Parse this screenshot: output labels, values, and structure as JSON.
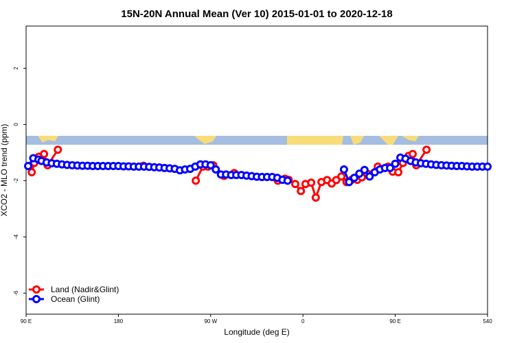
{
  "chart_data": {
    "type": "line",
    "title": "15N-20N Annual Mean (Ver 10)   2015-01-01 to 2020-12-18",
    "xlabel": "Longitude (deg E)",
    "ylabel": "XCO2 - MLO trend (ppm)",
    "xlim": [
      90,
      540
    ],
    "ylim": [
      -6.75,
      3.5
    ],
    "xticks": [
      {
        "value": 90,
        "label": "90 E"
      },
      180,
      {
        "value": 270,
        "label": "90 W"
      },
      {
        "value": 360,
        "label": "0"
      },
      {
        "value": 450,
        "label": "90 E"
      },
      540
    ],
    "yticks": [
      -6,
      -4,
      -2,
      0,
      2
    ],
    "legend": "bottom-left",
    "series": [
      {
        "name": "Land (Nadir&Glint)",
        "color": "#ff0000",
        "x": [
          95.5,
          98,
          102.5,
          107.5,
          111,
          121,
          150,
          204.5,
          230,
          255.5,
          262.5,
          267.5,
          272.5,
          283,
          293,
          310,
          335.5,
          342.5,
          346,
          352.5,
          358,
          362.5,
          368,
          372.5,
          378,
          383.5,
          388,
          392.5,
          397.5,
          402.5,
          407.5,
          413,
          417.5,
          423,
          433,
          443,
          447.5,
          453,
          457.5,
          463,
          467,
          470.5,
          480.5
        ],
        "values": [
          -1.7,
          -1.37,
          -1.15,
          -1.05,
          -1.45,
          -0.9,
          null,
          -1.47,
          null,
          -2.0,
          -1.5,
          -1.5,
          -1.45,
          -1.83,
          -1.73,
          null,
          -2.0,
          -1.93,
          -1.97,
          -2.12,
          -2.37,
          -2.12,
          -2.07,
          -2.6,
          -2.05,
          -1.98,
          -2.1,
          -1.98,
          -1.85,
          -2.05,
          -1.97,
          -1.97,
          -1.88,
          -1.76,
          -1.5,
          -1.5,
          -1.68,
          -1.7,
          -1.37,
          -1.12,
          -1.05,
          -1.45,
          -0.9
        ]
      },
      {
        "name": "Ocean (Glint)",
        "color": "#0000ff",
        "x": [
          92,
          97,
          102,
          105,
          110,
          115,
          120,
          125,
          130,
          135,
          140,
          145,
          150,
          155,
          160,
          165,
          170,
          175,
          180,
          185,
          190,
          195,
          200,
          205,
          210,
          215,
          220,
          225,
          230,
          235,
          240,
          245,
          250,
          255,
          260,
          265,
          270,
          275,
          280,
          285,
          290,
          295,
          300,
          305,
          310,
          315,
          320,
          325,
          330,
          335,
          340,
          345,
          370,
          400,
          405,
          410,
          415,
          420,
          425,
          430,
          435,
          440,
          445,
          450,
          455,
          460,
          465,
          470,
          475,
          480,
          485,
          490,
          495,
          500,
          505,
          510,
          515,
          520,
          525,
          530,
          535,
          540
        ],
        "values": [
          -1.48,
          -1.2,
          -1.25,
          -1.3,
          -1.35,
          -1.38,
          -1.4,
          -1.42,
          -1.44,
          -1.45,
          -1.46,
          -1.47,
          -1.47,
          -1.48,
          -1.48,
          -1.48,
          -1.48,
          -1.48,
          -1.48,
          -1.49,
          -1.49,
          -1.5,
          -1.5,
          -1.5,
          -1.51,
          -1.52,
          -1.53,
          -1.55,
          -1.56,
          -1.58,
          -1.63,
          -1.6,
          -1.58,
          -1.5,
          -1.42,
          -1.42,
          -1.45,
          -1.6,
          -1.78,
          -1.78,
          -1.8,
          -1.8,
          -1.8,
          -1.82,
          -1.84,
          -1.86,
          -1.87,
          -1.87,
          -1.87,
          -1.9,
          -1.97,
          -2.0,
          null,
          -1.6,
          -2.05,
          -1.9,
          -1.75,
          -1.62,
          -1.85,
          -1.7,
          -1.6,
          -1.55,
          -1.55,
          -1.4,
          -1.18,
          -1.22,
          -1.3,
          -1.35,
          -1.38,
          -1.4,
          -1.42,
          -1.44,
          -1.45,
          -1.46,
          -1.47,
          -1.48,
          -1.48,
          -1.49,
          -1.5,
          -1.5,
          -1.5,
          -1.5
        ]
      }
    ]
  }
}
